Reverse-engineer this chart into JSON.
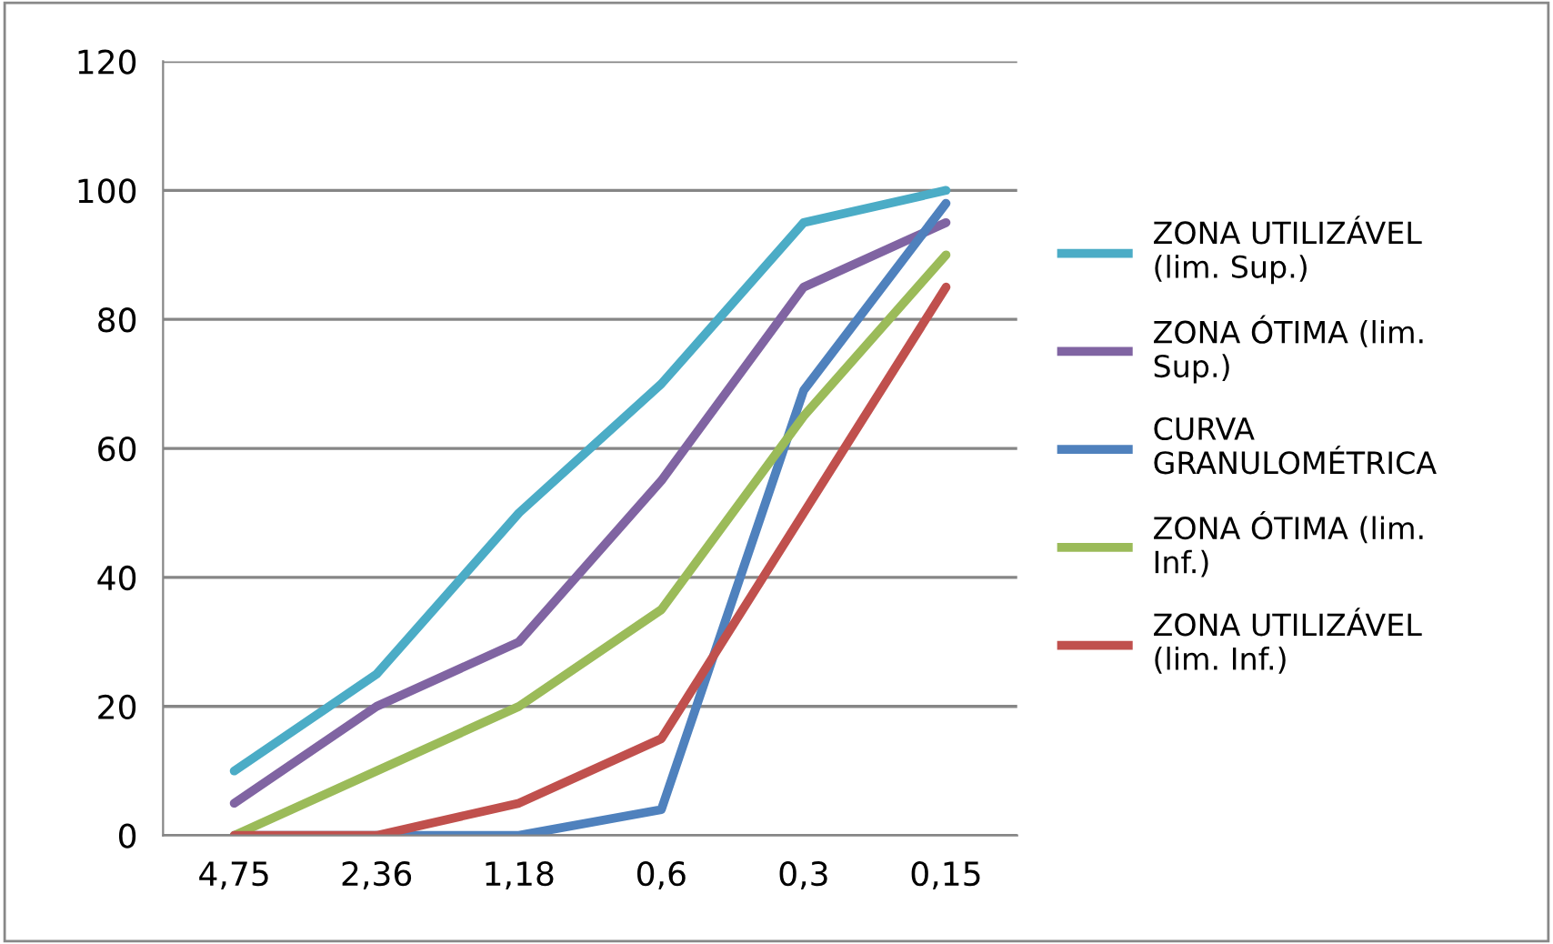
{
  "chart_data": {
    "type": "line",
    "categories": [
      "4,75",
      "2,36",
      "1,18",
      "0,6",
      "0,3",
      "0,15"
    ],
    "series": [
      {
        "name": "ZONA UTILIZÁVEL\n(lim. Sup.)",
        "color": "#4bacc6",
        "values": [
          10,
          25,
          50,
          70,
          95,
          100
        ]
      },
      {
        "name": "ZONA ÓTIMA (lim.\nSup.)",
        "color": "#8064a2",
        "values": [
          5,
          20,
          30,
          55,
          85,
          95
        ]
      },
      {
        "name": "CURVA\nGRANULOMÉTRICA",
        "color": "#4f81bd",
        "values": [
          0,
          0,
          0,
          4,
          69,
          98
        ]
      },
      {
        "name": "ZONA ÓTIMA (lim.\nInf.)",
        "color": "#9bbb59",
        "values": [
          0,
          10,
          20,
          35,
          65,
          90
        ]
      },
      {
        "name": "ZONA UTILIZÁVEL\n(lim. Inf.)",
        "color": "#c0504d",
        "values": [
          0,
          0,
          5,
          15,
          50,
          85
        ]
      }
    ],
    "ylim": [
      0,
      120
    ],
    "yticks": [
      0,
      20,
      40,
      60,
      80,
      100,
      120
    ],
    "grid": "y",
    "legend": "right",
    "marker": "none",
    "line_style": "solid"
  }
}
